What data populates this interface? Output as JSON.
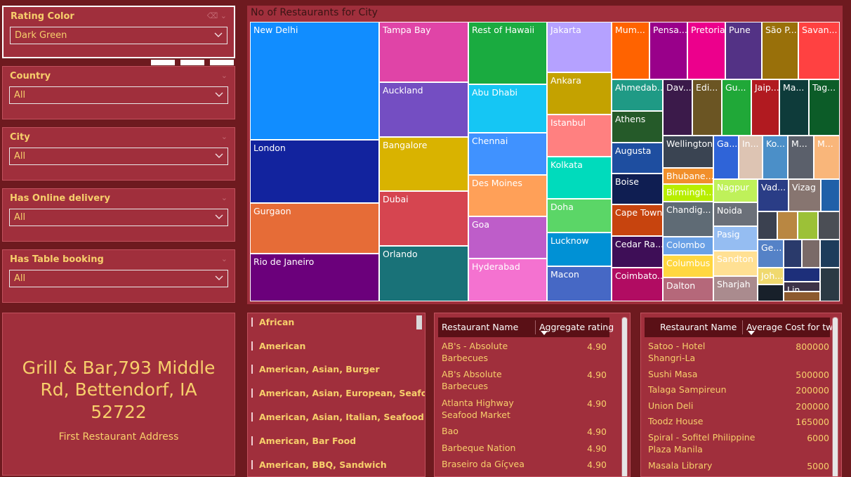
{
  "slicers": [
    {
      "title": "Rating Color",
      "value": "Dark Green"
    },
    {
      "title": "Country",
      "value": "All"
    },
    {
      "title": "City",
      "value": "All"
    },
    {
      "title": "Has Online delivery",
      "value": "All"
    },
    {
      "title": "Has Table booking",
      "value": "All"
    }
  ],
  "treemap": {
    "title": "No of Restaurants for City",
    "tiles": [
      {
        "label": "New Delhi",
        "color": "#118dff"
      },
      {
        "label": "London",
        "color": "#12239e"
      },
      {
        "label": "Gurgaon",
        "color": "#e66c37"
      },
      {
        "label": "Rio de Janeiro",
        "color": "#6b007b"
      },
      {
        "label": "Tampa Bay",
        "color": "#e044a7"
      },
      {
        "label": "Auckland",
        "color": "#744ec2"
      },
      {
        "label": "Bangalore",
        "color": "#d9b300"
      },
      {
        "label": "Dubai",
        "color": "#d64550"
      },
      {
        "label": "Orlando",
        "color": "#197278"
      },
      {
        "label": "Rest of Hawaii",
        "color": "#1aab40"
      },
      {
        "label": "Abu Dhabi",
        "color": "#15c6f4"
      },
      {
        "label": "Chennai",
        "color": "#4092ff"
      },
      {
        "label": "Des Moines",
        "color": "#ffa058"
      },
      {
        "label": "Goa",
        "color": "#be5dc9"
      },
      {
        "label": "Hyderabad",
        "color": "#f472d0"
      },
      {
        "label": "Jakarta",
        "color": "#b5a1ff"
      },
      {
        "label": "Ankara",
        "color": "#c4a200"
      },
      {
        "label": "Istanbul",
        "color": "#ff8080"
      },
      {
        "label": "Kolkata",
        "color": "#00dbbc"
      },
      {
        "label": "Doha",
        "color": "#5bd667"
      },
      {
        "label": "Lucknow",
        "color": "#0091d5"
      },
      {
        "label": "Macon",
        "color": "#4668c5"
      },
      {
        "label": "Mum...",
        "color": "#ff6300"
      },
      {
        "label": "Pensa...",
        "color": "#99008a"
      },
      {
        "label": "Pretoria",
        "color": "#ec008c"
      },
      {
        "label": "Pune",
        "color": "#533285"
      },
      {
        "label": "São P...",
        "color": "#99700a"
      },
      {
        "label": "Savan...",
        "color": "#ff4141"
      },
      {
        "label": "Ahmedab...",
        "color": "#1f9a85"
      },
      {
        "label": "Athens",
        "color": "#255a29"
      },
      {
        "label": "Augusta",
        "color": "#1e4ea0"
      },
      {
        "label": "Boise",
        "color": "#0f1e52"
      },
      {
        "label": "Cape Town",
        "color": "#c7440e"
      },
      {
        "label": "Cedar Ra...",
        "color": "#3e0e57"
      },
      {
        "label": "Coimbato...",
        "color": "#b10c62"
      },
      {
        "label": "Dav...",
        "color": "#3b1a4a"
      },
      {
        "label": "Edi...",
        "color": "#6b5523"
      },
      {
        "label": "Gu...",
        "color": "#20a838"
      },
      {
        "label": "Jaip...",
        "color": "#b11a20"
      },
      {
        "label": "Ma...",
        "color": "#0e3b3a"
      },
      {
        "label": "Tag...",
        "color": "#0c5c28"
      },
      {
        "label": "Wellington",
        "color": "#3a4452"
      },
      {
        "label": "Ga...",
        "color": "#2f64d8"
      },
      {
        "label": "In...",
        "color": "#ddc4b3"
      },
      {
        "label": "Ko...",
        "color": "#4b8fc8"
      },
      {
        "label": "M...",
        "color": "#5b606b"
      },
      {
        "label": "M...",
        "color": "#f9b67a"
      },
      {
        "label": "Bhubane...",
        "color": "#f18f2b"
      },
      {
        "label": "Birmingh...",
        "color": "#b8ee00"
      },
      {
        "label": "Chandig...",
        "color": "#5f6b75"
      },
      {
        "label": "Colombo",
        "color": "#6aa1e6"
      },
      {
        "label": "Columbus",
        "color": "#ffd740"
      },
      {
        "label": "Dalton",
        "color": "#b5687a"
      },
      {
        "label": "Nagpur",
        "color": "#bff15a"
      },
      {
        "label": "Noida",
        "color": "#6b7079"
      },
      {
        "label": "Pasig",
        "color": "#95bdf2"
      },
      {
        "label": "Sandton",
        "color": "#ffe093"
      },
      {
        "label": "Sharjah",
        "color": "#aa8b8e"
      },
      {
        "label": "Vad...",
        "color": "#2a3d86"
      },
      {
        "label": "Vizag",
        "color": "#877570"
      },
      {
        "label": "",
        "color": "#2060a8"
      },
      {
        "label": "",
        "color": "#3b4150"
      },
      {
        "label": "",
        "color": "#b98742"
      },
      {
        "label": "",
        "color": "#9cc137"
      },
      {
        "label": "",
        "color": "#4b4e55"
      },
      {
        "label": "Ge...",
        "color": "#5582c7"
      },
      {
        "label": "",
        "color": "#2a3a6b"
      },
      {
        "label": "",
        "color": "#7a6a68"
      },
      {
        "label": "",
        "color": "#1d3c5b"
      },
      {
        "label": "Joh...",
        "color": "#f0d96e"
      },
      {
        "label": "",
        "color": "#1d2f7a"
      },
      {
        "label": "",
        "color": "#2b3a44"
      },
      {
        "label": "",
        "color": "#18202a"
      },
      {
        "label": "Lin...",
        "color": "#3d3348"
      },
      {
        "label": "",
        "color": "#8d5a2e"
      },
      {
        "label": "",
        "color": "#5a7d23"
      }
    ]
  },
  "card": {
    "value": "Grill & Bar,793 Middle Rd, Bettendorf, IA 52722",
    "label": "First Restaurant Address"
  },
  "cuisines": [
    "African",
    "American",
    "American, Asian, Burger",
    "American, Asian, European, Seafood",
    "American, Asian, Italian, Seafood",
    "American, Bar Food",
    "American, BBQ, Sandwich"
  ],
  "ratingTable": {
    "col1": "Restaurant Name",
    "col2": "Aggregate rating",
    "rows": [
      {
        "name": "AB's - Absolute Barbecues",
        "val": "4.90"
      },
      {
        "name": "AB's Absolute Barbecues",
        "val": "4.90"
      },
      {
        "name": "Atlanta Highway Seafood Market",
        "val": "4.90"
      },
      {
        "name": "Bao",
        "val": "4.90"
      },
      {
        "name": "Barbeque Nation",
        "val": "4.90"
      },
      {
        "name": "Braseiro da Gíçvea",
        "val": "4.90"
      }
    ]
  },
  "costTable": {
    "col1": "Restaurant Name",
    "col2": "Average Cost for two",
    "rows": [
      {
        "name": "Satoo - Hotel Shangri-La",
        "val": "800000"
      },
      {
        "name": "Sushi Masa",
        "val": "500000"
      },
      {
        "name": "Talaga Sampireun",
        "val": "200000"
      },
      {
        "name": "Union Deli",
        "val": "200000"
      },
      {
        "name": "Toodz House",
        "val": "165000"
      },
      {
        "name": "Spiral - Sofitel Philippine Plaza Manila",
        "val": "6000"
      },
      {
        "name": "Masala Library",
        "val": "5000"
      }
    ]
  }
}
